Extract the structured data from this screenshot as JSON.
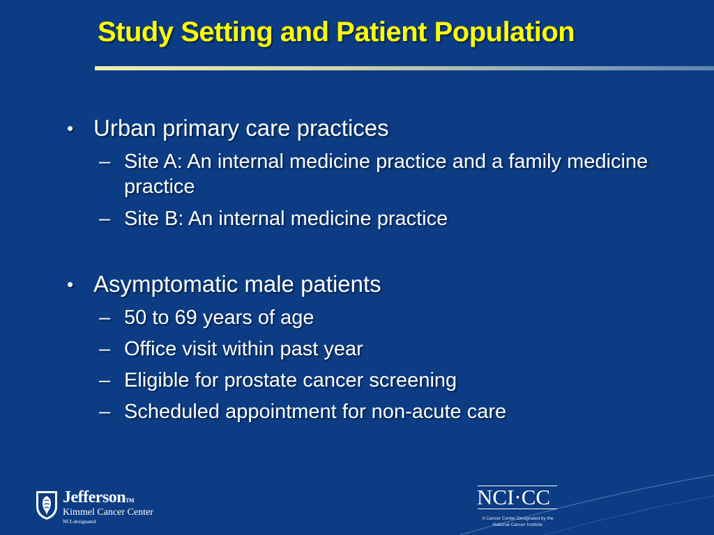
{
  "slide": {
    "title": "Study Setting and Patient Population",
    "colors": {
      "background": "#0c3c84",
      "title": "#ffff00",
      "text": "#ffffff"
    },
    "bullets": [
      {
        "marker": "•",
        "text": "Urban primary care practices",
        "sub": [
          {
            "marker": "–",
            "text": "Site A: An internal medicine practice and a family medicine practice"
          },
          {
            "marker": "–",
            "text": "Site B: An internal medicine practice"
          }
        ]
      },
      {
        "marker": "•",
        "text": "Asymptomatic male patients",
        "sub": [
          {
            "marker": "–",
            "text": "50 to 69 years of age"
          },
          {
            "marker": "–",
            "text": "Office visit within past year"
          },
          {
            "marker": "–",
            "text": "Eligible for prostate cancer screening"
          },
          {
            "marker": "–",
            "text": "Scheduled appointment for non-acute care"
          }
        ]
      }
    ]
  },
  "logos": {
    "jefferson": {
      "name": "Jefferson",
      "tm": "TM",
      "subtitle": "Kimmel Cancer Center",
      "small": "NCI-designated",
      "icon": "jefferson-shield-icon"
    },
    "nci": {
      "mark": "NCI·CC",
      "caption_line1": "A Cancer Center Designated by the",
      "caption_line2": "National Cancer Institute"
    }
  }
}
